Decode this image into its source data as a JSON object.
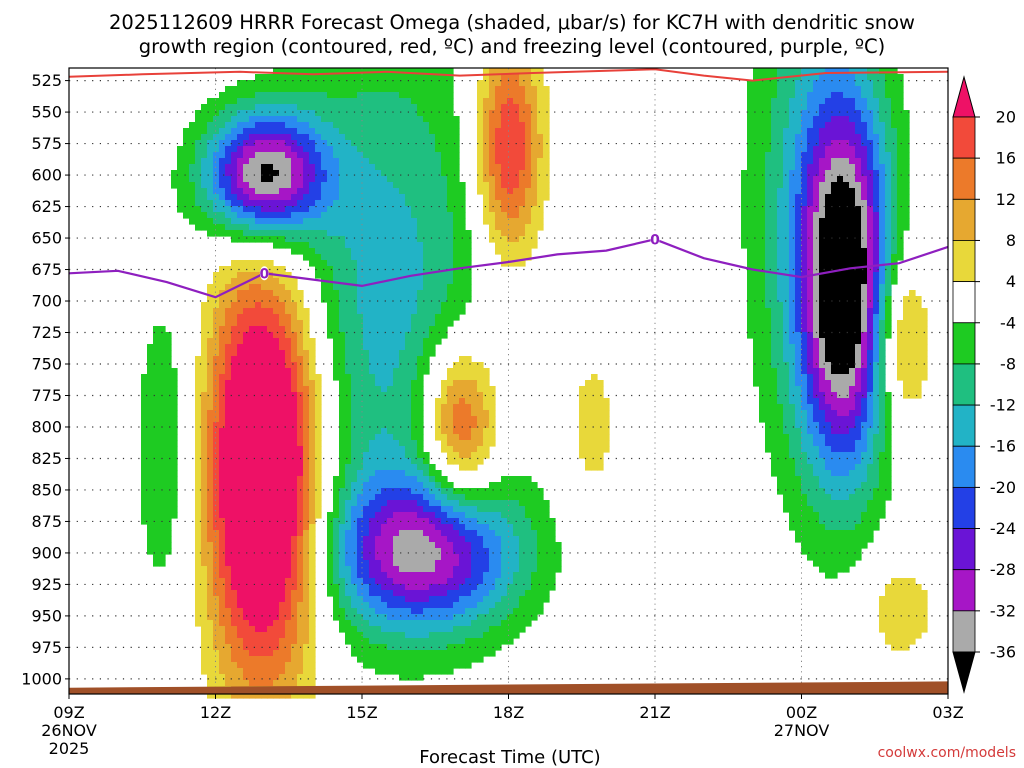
{
  "chart_data": {
    "type": "heatmap",
    "title_line1": "2025112609 HRRR Forecast Omega (shaded, μbar/s) for KC7H with dendritic snow",
    "title_line2": "growth region (contoured, red, ºC) and freezing level (contoured, purple, ºC)",
    "xlabel": "Forecast Time (UTC)",
    "credit": "coolwx.com/models",
    "x_hours": [
      0,
      3,
      6,
      9,
      12,
      15,
      18
    ],
    "x_ticks": [
      {
        "hour": 0,
        "label": "09Z"
      },
      {
        "hour": 3,
        "label": "12Z"
      },
      {
        "hour": 6,
        "label": "15Z"
      },
      {
        "hour": 9,
        "label": "18Z"
      },
      {
        "hour": 12,
        "label": "21Z"
      },
      {
        "hour": 15,
        "label": "00Z"
      },
      {
        "hour": 18,
        "label": "03Z"
      }
    ],
    "date_labels": [
      {
        "hour": 0,
        "line1": "26NOV",
        "line2": "2025"
      },
      {
        "hour": 15,
        "line1": "27NOV",
        "line2": ""
      }
    ],
    "y_levels": [
      525,
      550,
      575,
      600,
      625,
      650,
      675,
      700,
      725,
      750,
      775,
      800,
      825,
      850,
      875,
      900,
      925,
      950,
      975,
      1000
    ],
    "ylim": [
      515,
      1012
    ],
    "colorbar": {
      "labels": [
        "20",
        "16",
        "12",
        "8",
        "4",
        "-4",
        "-8",
        "-12",
        "-16",
        "-20",
        "-24",
        "-28",
        "-32",
        "-36"
      ],
      "colors": [
        "#ee1166",
        "#f24a3a",
        "#ec7a2a",
        "#e6a830",
        "#e8d83a",
        "#ffffff",
        "#1ecb22",
        "#1fbf80",
        "#22b3c6",
        "#2a8bf0",
        "#2340e6",
        "#6a14d6",
        "#a616c6",
        "#aaaaaa",
        "#000000"
      ]
    },
    "omega_features": [
      {
        "name": "rising-core-12z",
        "hour": 4.0,
        "p": 600,
        "dh": 1.2,
        "dp": 50,
        "omega": -38
      },
      {
        "name": "rising-band-15z",
        "hour": 6.5,
        "p": 700,
        "dh": 2.2,
        "dp": 220,
        "omega": -14
      },
      {
        "name": "rising-low-16z",
        "hour": 7.3,
        "p": 900,
        "dh": 1.9,
        "dp": 60,
        "omega": -30
      },
      {
        "name": "rising-left-10z",
        "hour": 2.0,
        "p": 820,
        "dh": 0.7,
        "dp": 140,
        "omega": -8
      },
      {
        "name": "rising-core-0130z",
        "hour": 15.9,
        "p": 690,
        "dh": 0.9,
        "dp": 140,
        "omega": -38
      },
      {
        "name": "rising-band-0030z",
        "hour": 15.3,
        "p": 620,
        "dh": 1.4,
        "dp": 220,
        "omega": -12
      },
      {
        "name": "sinking-core-13z",
        "hour": 4.0,
        "p": 835,
        "dh": 1.15,
        "dp": 160,
        "omega": 40
      },
      {
        "name": "sinking-18z",
        "hour": 9.0,
        "p": 580,
        "dh": 0.7,
        "dp": 90,
        "omega": 22
      },
      {
        "name": "sinking-17z",
        "hour": 8.0,
        "p": 800,
        "dh": 0.8,
        "dp": 70,
        "omega": 22
      },
      {
        "name": "sinking-02z",
        "hour": 17.0,
        "p": 730,
        "dh": 0.6,
        "dp": 70,
        "omega": 15
      },
      {
        "name": "sinking-weak-20z",
        "hour": 10.7,
        "p": 800,
        "dh": 0.6,
        "dp": 70,
        "omega": 6
      },
      {
        "name": "sinking-weak-02z",
        "hour": 17.0,
        "p": 945,
        "dh": 0.8,
        "dp": 45,
        "omega": 7
      }
    ],
    "dgz_contour": {
      "color": "#e8413a",
      "points": [
        [
          0,
          522
        ],
        [
          1.5,
          520
        ],
        [
          3.5,
          518
        ],
        [
          5.0,
          520
        ],
        [
          6.5,
          518
        ],
        [
          8.0,
          521
        ],
        [
          9.5,
          519
        ],
        [
          12.0,
          516
        ],
        [
          13.0,
          521
        ],
        [
          14.0,
          525
        ],
        [
          15.5,
          519
        ],
        [
          18,
          518
        ]
      ]
    },
    "freezing_level": {
      "color": "#8e1fbf",
      "label": "0",
      "points": [
        [
          0,
          678
        ],
        [
          1.0,
          676
        ],
        [
          2.0,
          685
        ],
        [
          3.0,
          697
        ],
        [
          4.0,
          678
        ],
        [
          5.0,
          683
        ],
        [
          6.0,
          688
        ],
        [
          7.0,
          680
        ],
        [
          8.0,
          674
        ],
        [
          9.0,
          669
        ],
        [
          10.0,
          663
        ],
        [
          11.0,
          660
        ],
        [
          12.0,
          651
        ],
        [
          13.0,
          666
        ],
        [
          14.0,
          675
        ],
        [
          15.0,
          681
        ],
        [
          16.0,
          674
        ],
        [
          17.0,
          670
        ],
        [
          18.0,
          657
        ]
      ],
      "label_positions": [
        [
          4.0,
          678
        ],
        [
          12.0,
          651
        ]
      ]
    },
    "terrain": {
      "color": "#a05028",
      "surface_p": [
        1007,
        1002
      ]
    }
  }
}
